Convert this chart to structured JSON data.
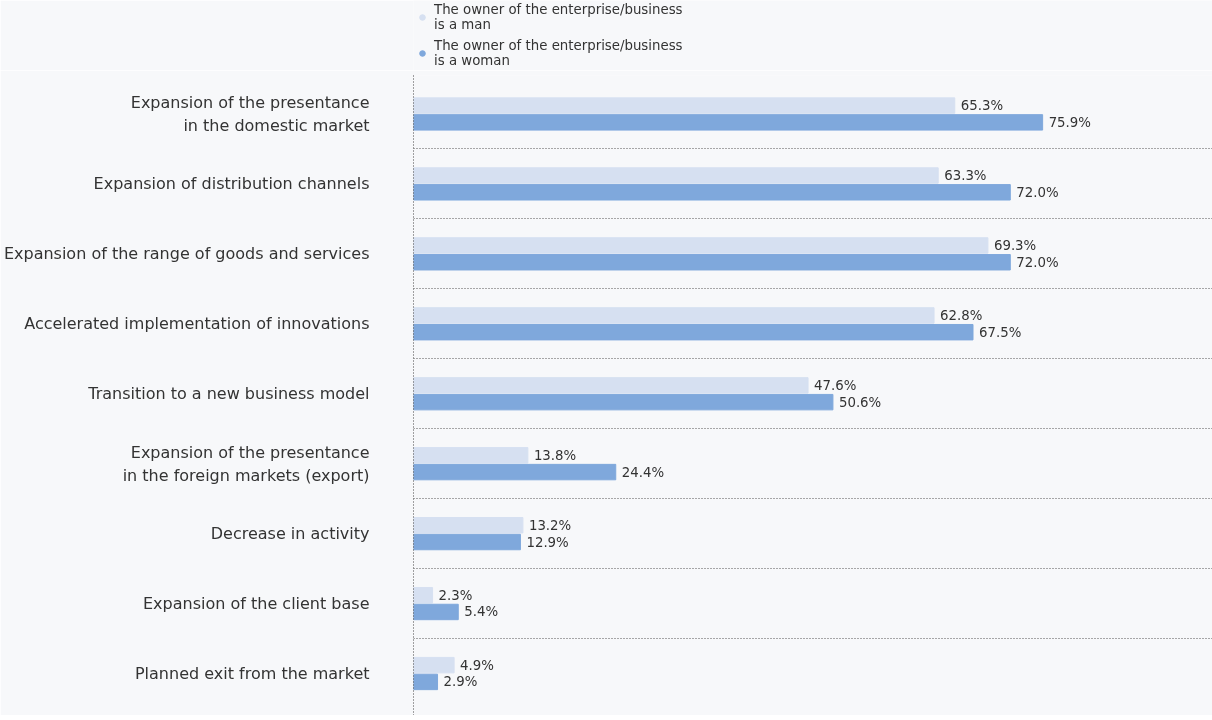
{
  "chart_data": {
    "type": "bar",
    "orientation": "horizontal",
    "categories": [
      "Expansion of the presentance\nin the domestic market",
      "Expansion of distribution channels",
      "Expansion of the range of goods and services",
      "Accelerated implementation of innovations",
      "Transition to a new business model",
      "Expansion of the presentance\nin the foreign markets (export)",
      "Decrease in activity",
      "Expansion of the client base",
      "Planned exit from the market"
    ],
    "series": [
      {
        "name": "The owner of the enterprise/business\nis a man",
        "color": "#d6e0f1",
        "values": [
          65.3,
          63.3,
          69.3,
          62.8,
          47.6,
          13.8,
          13.2,
          2.3,
          4.9
        ],
        "value_labels": [
          "65.3%",
          "63.3%",
          "69.3%",
          "62.8%",
          "47.6%",
          "13.8%",
          "13.2%",
          "2.3%",
          "4.9%"
        ]
      },
      {
        "name": "The owner of the enterprise/business\nis a woman",
        "color": "#7fa8dc",
        "values": [
          75.9,
          72.0,
          72.0,
          67.5,
          50.6,
          24.4,
          12.9,
          5.4,
          2.9
        ],
        "value_labels": [
          "75.9%",
          "72.0%",
          "72.0%",
          "67.5%",
          "50.6%",
          "24.4%",
          "12.9%",
          "5.4%",
          "2.9%"
        ]
      }
    ],
    "grid": "y",
    "legend": "top left"
  }
}
